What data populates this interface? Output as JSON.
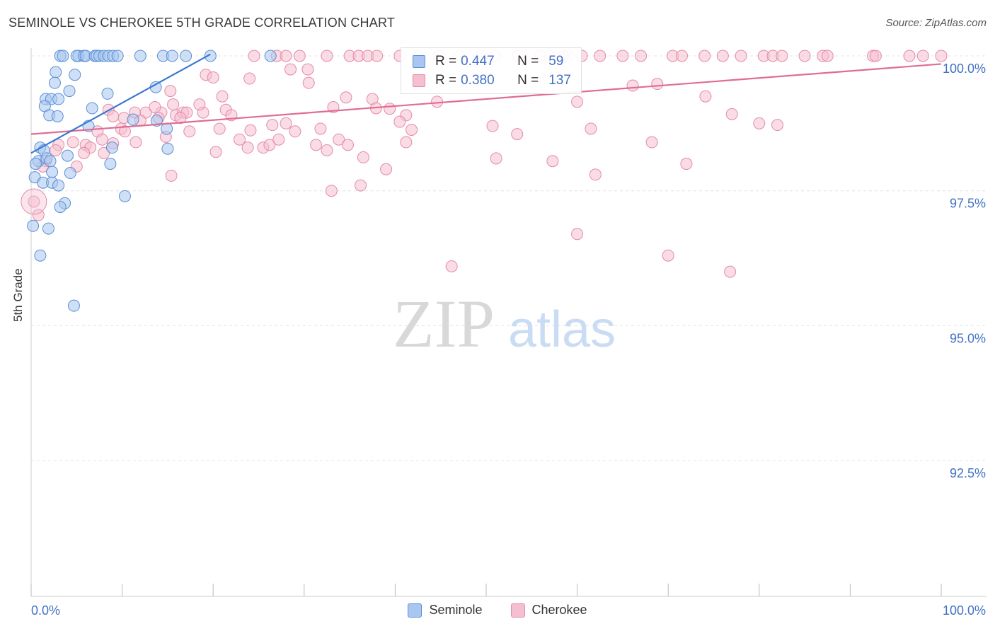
{
  "title": "SEMINOLE VS CHEROKEE 5TH GRADE CORRELATION CHART",
  "source": "Source: ZipAtlas.com",
  "watermark_zip": "ZIP",
  "watermark_atlas": "atlas",
  "legend": {
    "r_label": "R =",
    "n_label": "N =",
    "seminole": {
      "name": "Seminole",
      "r": "0.447",
      "n": "59"
    },
    "cherokee": {
      "name": "Cherokee",
      "r": "0.380",
      "n": "137"
    }
  },
  "colors": {
    "seminole_fill": "#a8c6ef",
    "seminole_stroke": "#5b8fd6",
    "seminole_line": "#3a78d0",
    "cherokee_fill": "#f6bfd0",
    "cherokee_stroke": "#e48aa8",
    "cherokee_line": "#e06c94",
    "axis_text": "#4472c4",
    "grid": "#e4e4e4"
  },
  "chart_data": {
    "type": "scatter",
    "title": "SEMINOLE VS CHEROKEE 5TH GRADE CORRELATION CHART",
    "xlabel": "",
    "ylabel": "5th Grade",
    "xlim": [
      0,
      100
    ],
    "ylim": [
      90.2,
      100.2
    ],
    "x_tick_labels": [
      "0.0%",
      "100.0%"
    ],
    "y_ticks": [
      100.0,
      97.5,
      95.0,
      92.5
    ],
    "y_tick_labels": [
      "100.0%",
      "97.5%",
      "95.0%",
      "92.5%"
    ],
    "grid": true,
    "series": [
      {
        "name": "Seminole",
        "r": 0.447,
        "n": 59,
        "trend": {
          "x": [
            0.0,
            19.7
          ],
          "y": [
            98.2,
            100.03
          ]
        },
        "points": [
          [
            3.2,
            100
          ],
          [
            3.5,
            100
          ],
          [
            5.2,
            100
          ],
          [
            5.0,
            100
          ],
          [
            5.8,
            100
          ],
          [
            6.0,
            100
          ],
          [
            7.0,
            100
          ],
          [
            7.2,
            100
          ],
          [
            7.5,
            100
          ],
          [
            8.0,
            100
          ],
          [
            8.5,
            100
          ],
          [
            9.0,
            100
          ],
          [
            9.5,
            100
          ],
          [
            12.0,
            100
          ],
          [
            14.5,
            100
          ],
          [
            15.5,
            100
          ],
          [
            17.0,
            100
          ],
          [
            19.7,
            100
          ],
          [
            26.3,
            100
          ],
          [
            2.7,
            99.7
          ],
          [
            4.8,
            99.65
          ],
          [
            2.6,
            99.5
          ],
          [
            4.2,
            99.35
          ],
          [
            8.4,
            99.3
          ],
          [
            13.7,
            99.42
          ],
          [
            1.6,
            99.2
          ],
          [
            2.2,
            99.2
          ],
          [
            3.0,
            99.2
          ],
          [
            1.5,
            99.07
          ],
          [
            2.0,
            98.9
          ],
          [
            2.9,
            98.88
          ],
          [
            6.7,
            99.03
          ],
          [
            11.2,
            98.82
          ],
          [
            13.8,
            98.8
          ],
          [
            6.3,
            98.7
          ],
          [
            14.9,
            98.65
          ],
          [
            1.0,
            98.3
          ],
          [
            1.4,
            98.25
          ],
          [
            8.9,
            98.3
          ],
          [
            15.0,
            98.28
          ],
          [
            0.8,
            98.05
          ],
          [
            0.5,
            98.0
          ],
          [
            1.7,
            98.1
          ],
          [
            2.1,
            98.05
          ],
          [
            4.0,
            98.15
          ],
          [
            8.7,
            98.0
          ],
          [
            0.4,
            97.75
          ],
          [
            2.3,
            97.85
          ],
          [
            4.3,
            97.83
          ],
          [
            1.3,
            97.65
          ],
          [
            2.3,
            97.65
          ],
          [
            3.0,
            97.6
          ],
          [
            10.3,
            97.4
          ],
          [
            3.7,
            97.27
          ],
          [
            3.2,
            97.2
          ],
          [
            0.2,
            96.85
          ],
          [
            1.9,
            96.8
          ],
          [
            1.0,
            96.3
          ],
          [
            4.7,
            95.37
          ]
        ]
      },
      {
        "name": "Cherokee",
        "r": 0.38,
        "n": 137,
        "trend": {
          "x": [
            0.0,
            100.0
          ],
          "y": [
            98.55,
            99.85
          ]
        },
        "points": [
          [
            24.5,
            100
          ],
          [
            27.0,
            100
          ],
          [
            28.0,
            100
          ],
          [
            32.5,
            100
          ],
          [
            35.0,
            100
          ],
          [
            36.0,
            100
          ],
          [
            37.0,
            100
          ],
          [
            38.0,
            100
          ],
          [
            40.5,
            100
          ],
          [
            42.5,
            100
          ],
          [
            44.8,
            100
          ],
          [
            47.0,
            100
          ],
          [
            49.5,
            100
          ],
          [
            51.0,
            100
          ],
          [
            53.5,
            100
          ],
          [
            56.0,
            100
          ],
          [
            58.5,
            100
          ],
          [
            60.5,
            100
          ],
          [
            62.5,
            100
          ],
          [
            65.0,
            100
          ],
          [
            67.0,
            100
          ],
          [
            70.5,
            100
          ],
          [
            71.5,
            100
          ],
          [
            74.0,
            100
          ],
          [
            76.0,
            100
          ],
          [
            78.0,
            100
          ],
          [
            80.5,
            100
          ],
          [
            81.5,
            100
          ],
          [
            82.5,
            100
          ],
          [
            85.0,
            100
          ],
          [
            87.0,
            100
          ],
          [
            87.5,
            100
          ],
          [
            92.5,
            100
          ],
          [
            92.8,
            100
          ],
          [
            96.5,
            100
          ],
          [
            98.0,
            100
          ],
          [
            100.0,
            100
          ],
          [
            57.0,
            100
          ],
          [
            59.0,
            100
          ],
          [
            29.5,
            100
          ],
          [
            19.2,
            99.65
          ],
          [
            20.0,
            99.6
          ],
          [
            24.0,
            99.58
          ],
          [
            28.5,
            99.75
          ],
          [
            30.4,
            99.75
          ],
          [
            30.5,
            99.5
          ],
          [
            15.3,
            99.35
          ],
          [
            21.0,
            99.25
          ],
          [
            34.6,
            99.23
          ],
          [
            37.5,
            99.2
          ],
          [
            44.6,
            99.15
          ],
          [
            60.0,
            99.15
          ],
          [
            74.1,
            99.25
          ],
          [
            66.1,
            99.45
          ],
          [
            68.8,
            99.48
          ],
          [
            8.5,
            99.0
          ],
          [
            11.4,
            98.95
          ],
          [
            12.6,
            98.95
          ],
          [
            14.3,
            98.95
          ],
          [
            15.9,
            98.9
          ],
          [
            16.7,
            98.95
          ],
          [
            17.1,
            98.95
          ],
          [
            18.9,
            98.95
          ],
          [
            21.4,
            99.0
          ],
          [
            22.0,
            98.9
          ],
          [
            9.0,
            98.88
          ],
          [
            13.6,
            99.05
          ],
          [
            15.6,
            99.1
          ],
          [
            18.5,
            99.1
          ],
          [
            33.2,
            99.05
          ],
          [
            37.9,
            99.03
          ],
          [
            39.4,
            99.02
          ],
          [
            41.2,
            98.9
          ],
          [
            40.5,
            98.78
          ],
          [
            14.0,
            98.85
          ],
          [
            10.2,
            98.85
          ],
          [
            12.0,
            98.8
          ],
          [
            16.4,
            98.85
          ],
          [
            26.5,
            98.72
          ],
          [
            28.0,
            98.75
          ],
          [
            7.3,
            98.6
          ],
          [
            9.9,
            98.65
          ],
          [
            10.3,
            98.6
          ],
          [
            17.4,
            98.6
          ],
          [
            20.7,
            98.65
          ],
          [
            24.1,
            98.62
          ],
          [
            29.0,
            98.6
          ],
          [
            31.8,
            98.65
          ],
          [
            41.8,
            98.63
          ],
          [
            50.7,
            98.7
          ],
          [
            53.4,
            98.55
          ],
          [
            3.0,
            98.35
          ],
          [
            4.6,
            98.4
          ],
          [
            6.0,
            98.35
          ],
          [
            6.5,
            98.3
          ],
          [
            7.8,
            98.45
          ],
          [
            9.0,
            98.38
          ],
          [
            11.5,
            98.4
          ],
          [
            14.8,
            98.5
          ],
          [
            22.9,
            98.45
          ],
          [
            23.8,
            98.3
          ],
          [
            25.5,
            98.3
          ],
          [
            26.2,
            98.35
          ],
          [
            27.2,
            98.45
          ],
          [
            31.3,
            98.35
          ],
          [
            32.5,
            98.25
          ],
          [
            33.8,
            98.45
          ],
          [
            34.8,
            98.35
          ],
          [
            41.2,
            98.4
          ],
          [
            2.7,
            98.25
          ],
          [
            5.8,
            98.2
          ],
          [
            8.0,
            98.2
          ],
          [
            20.3,
            98.22
          ],
          [
            36.5,
            98.12
          ],
          [
            51.1,
            98.1
          ],
          [
            57.3,
            98.05
          ],
          [
            72.0,
            98.0
          ],
          [
            62.0,
            97.8
          ],
          [
            39.0,
            97.9
          ],
          [
            15.4,
            97.78
          ],
          [
            1.6,
            98.05
          ],
          [
            1.3,
            97.95
          ],
          [
            5.0,
            97.95
          ],
          [
            0.3,
            97.3
          ],
          [
            0.8,
            97.05
          ],
          [
            33.0,
            97.5
          ],
          [
            36.2,
            97.6
          ],
          [
            61.5,
            98.65
          ],
          [
            68.2,
            98.4
          ],
          [
            77.0,
            98.92
          ],
          [
            80.0,
            98.75
          ],
          [
            82.0,
            98.72
          ],
          [
            76.8,
            96.0
          ],
          [
            70.0,
            96.3
          ],
          [
            60.0,
            96.7
          ],
          [
            46.2,
            96.1
          ]
        ]
      }
    ]
  }
}
